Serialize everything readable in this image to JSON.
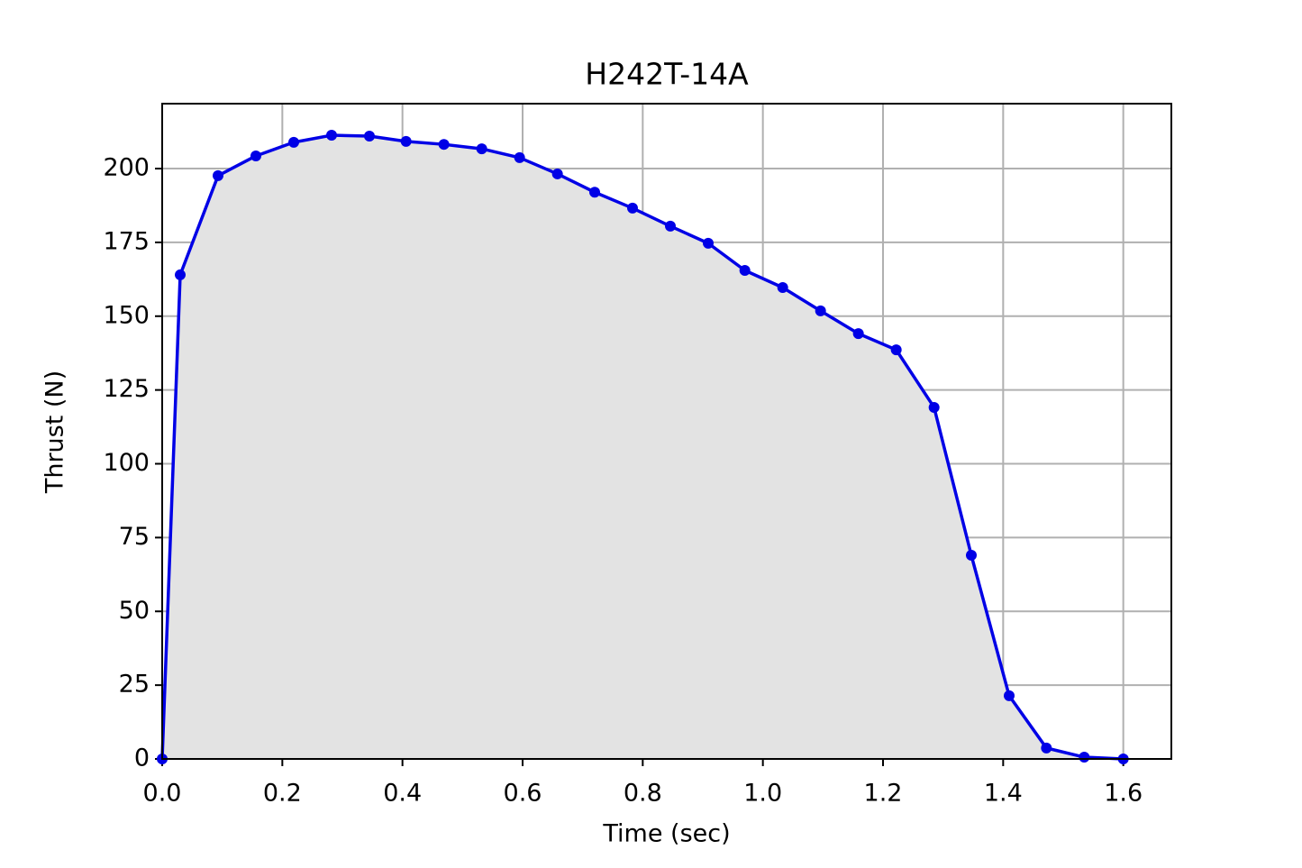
{
  "chart_data": {
    "type": "line",
    "title": "H242T-14A",
    "x_label": "Time (sec)",
    "y_label": "Thrust (N)",
    "x": [
      0,
      0.03,
      0.093,
      0.156,
      0.219,
      0.282,
      0.345,
      0.406,
      0.469,
      0.532,
      0.595,
      0.658,
      0.72,
      0.783,
      0.846,
      0.909,
      0.97,
      1.033,
      1.096,
      1.159,
      1.222,
      1.285,
      1.347,
      1.41,
      1.472,
      1.535,
      1.6
    ],
    "series": [
      {
        "color": "#0000e6",
        "fill_color": "#e3e3e3",
        "values": [
          0,
          164,
          197.6,
          204.3,
          208.9,
          211.3,
          211,
          209.2,
          208.2,
          206.7,
          203.7,
          198.2,
          192,
          186.6,
          180.5,
          174.7,
          165.5,
          159.7,
          151.8,
          144.1,
          138.6,
          119.1,
          69,
          21.4,
          3.7,
          0.6,
          0
        ]
      }
    ],
    "xlim": [
      0,
      1.68
    ],
    "ylim": [
      0,
      222
    ],
    "xticks": [
      {
        "value": 0,
        "label": "0.0"
      },
      0.2,
      0.4,
      0.6,
      0.8,
      {
        "value": 1,
        "label": "1.0"
      },
      1.2,
      1.4,
      1.6
    ],
    "yticks": [
      0,
      25,
      50,
      75,
      100,
      125,
      150,
      175,
      200
    ],
    "grid": true
  }
}
